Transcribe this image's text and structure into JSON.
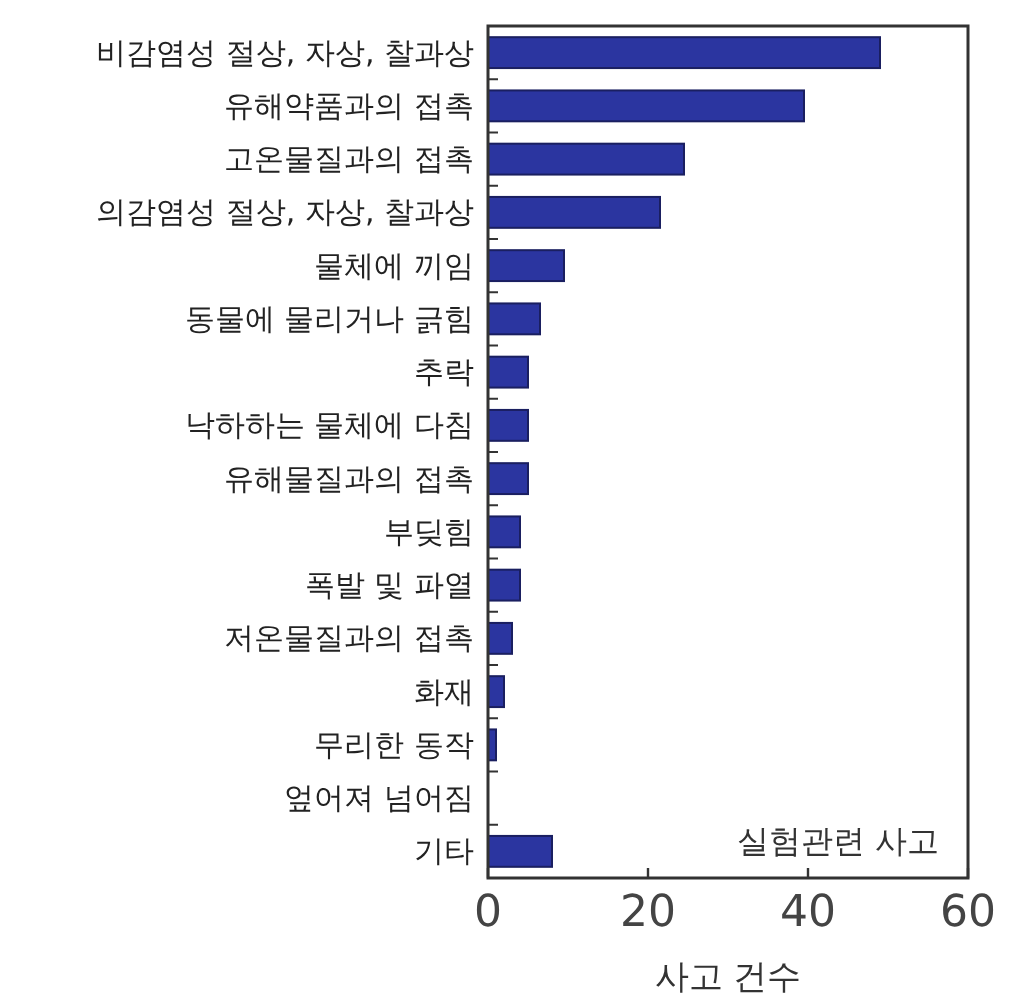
{
  "chart_data": {
    "type": "bar",
    "orientation": "horizontal",
    "categories": [
      "비감염성 절상, 자상, 찰과상",
      "유해약품과의 접촉",
      "고온물질과의 접촉",
      "의감염성 절상, 자상, 찰과상",
      "물체에 끼임",
      "동물에 물리거나 긁힘",
      "추락",
      "낙하하는 물체에 다침",
      "유해물질과의 접촉",
      "부딪힘",
      "폭발 및 파열",
      "저온물질과의 접촉",
      "화재",
      "무리한 동작",
      "엎어져 넘어짐",
      "기타"
    ],
    "values": [
      49,
      39.5,
      24.5,
      21.5,
      9.5,
      6.5,
      5,
      5,
      5,
      4,
      4,
      3,
      2,
      1,
      0,
      8
    ],
    "color": "#2b35a0",
    "xlim": [
      0,
      60
    ],
    "xticks": [
      0,
      20,
      40,
      60
    ],
    "xlabel": "사고 건수",
    "annotations": [
      "실험관련 사고"
    ]
  }
}
